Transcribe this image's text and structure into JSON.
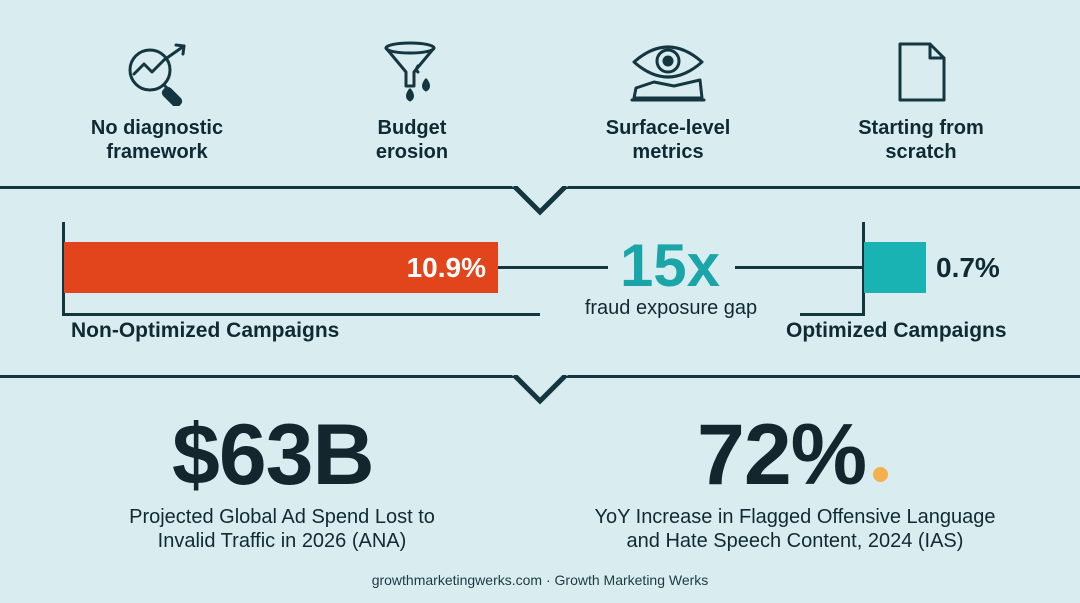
{
  "issues": [
    {
      "label": "No diagnostic\nframework",
      "icon": "magnifier-chart-icon"
    },
    {
      "label": "Budget\nerosion",
      "icon": "funnel-drops-icon"
    },
    {
      "label": "Surface-level\nmetrics",
      "icon": "eye-map-icon"
    },
    {
      "label": "Starting from\nscratch",
      "icon": "blank-document-icon"
    }
  ],
  "comparison": {
    "non_optimized": {
      "label": "Non-Optimized Campaigns",
      "value_label": "10.9%",
      "value": 10.9,
      "color": "#e2441b"
    },
    "optimized": {
      "label": "Optimized Campaigns",
      "value_label": "0.7%",
      "value": 0.7,
      "color": "#19b3b3"
    },
    "multiplier": "15x",
    "multiplier_caption": "fraud exposure gap"
  },
  "stats": [
    {
      "value": "$63B",
      "description": "Projected Global Ad Spend Lost to\nInvalid Traffic in 2026 (ANA)"
    },
    {
      "value": "72%",
      "description": "YoY Increase in Flagged Offensive Language\nand Hate Speech Content, 2024 (IAS)"
    }
  ],
  "footer": "growthmarketingwerks.com · Growth Marketing Werks"
}
